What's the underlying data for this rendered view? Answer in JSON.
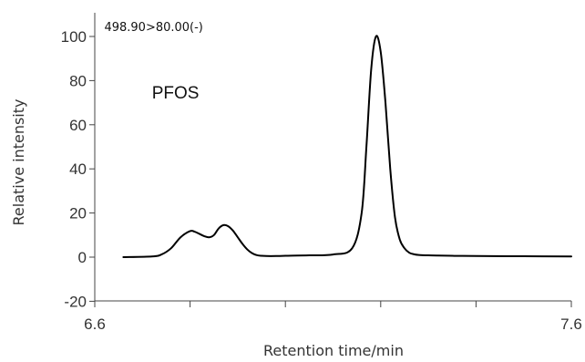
{
  "chart_data": {
    "type": "line",
    "xlabel": "Retention time/min",
    "ylabel": "Relative intensity",
    "xlim": [
      6.6,
      7.6
    ],
    "ylim": [
      -20,
      110
    ],
    "x_tick_labels": [
      "6.6",
      "7.6"
    ],
    "x_minor_ticks": [
      6.8,
      7.0,
      7.2,
      7.4
    ],
    "y_ticks": [
      -20,
      0,
      20,
      40,
      60,
      80,
      100
    ],
    "y_tick_labels": [
      "-20",
      "0",
      "20",
      "40",
      "60",
      "80",
      "100"
    ],
    "annotations": [
      {
        "text": "498.90>80.00(-)",
        "x": 6.62,
        "y": 102.5
      },
      {
        "text": "PFOS",
        "x": 6.72,
        "y": 72
      }
    ],
    "series": [
      {
        "color": "#000000",
        "x": [
          6.66,
          6.72,
          6.74,
          6.76,
          6.78,
          6.8,
          6.81,
          6.82,
          6.83,
          6.84,
          6.85,
          6.86,
          6.87,
          6.88,
          6.89,
          6.9,
          6.91,
          6.92,
          6.93,
          6.94,
          6.95,
          6.96,
          6.98,
          7.0,
          7.05,
          7.1,
          7.14,
          7.16,
          7.17,
          7.18,
          7.19,
          7.2,
          7.21,
          7.22,
          7.23,
          7.24,
          7.25,
          7.26,
          7.27,
          7.28,
          7.3,
          7.32,
          7.35,
          7.4,
          7.5,
          7.6
        ],
        "y": [
          0,
          0.3,
          1.2,
          4,
          9,
          11.8,
          11.5,
          10.5,
          9.5,
          9,
          10,
          13,
          14.5,
          14,
          12,
          9,
          6,
          3.5,
          1.8,
          0.9,
          0.6,
          0.5,
          0.5,
          0.6,
          0.8,
          1.2,
          4,
          20,
          50,
          85,
          100,
          93,
          70,
          40,
          18,
          8,
          4,
          2,
          1.3,
          1,
          0.8,
          0.7,
          0.6,
          0.5,
          0.4,
          0.3
        ]
      }
    ]
  }
}
